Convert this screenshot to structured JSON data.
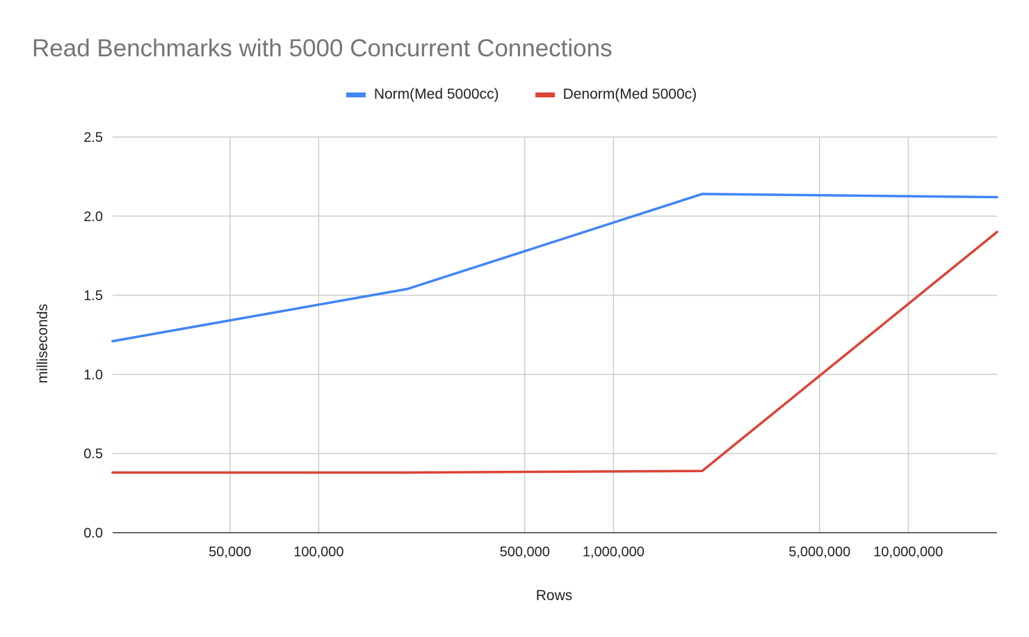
{
  "chart_data": {
    "type": "line",
    "title": "Read Benchmarks with 5000 Concurrent Connections",
    "xlabel": "Rows",
    "ylabel": "milliseconds",
    "x_scale": "log",
    "xlim": [
      20000,
      20000000
    ],
    "ylim": [
      0,
      2.5
    ],
    "y_ticks": [
      0.0,
      0.5,
      1.0,
      1.5,
      2.0,
      2.5
    ],
    "y_tick_labels": [
      "0.0",
      "0.5",
      "1.0",
      "1.5",
      "2.0",
      "2.5"
    ],
    "x_ticks": [
      50000,
      100000,
      500000,
      1000000,
      5000000,
      10000000
    ],
    "x_tick_labels": [
      "50,000",
      "100,000",
      "500,000",
      "1,000,000",
      "5,000,000",
      "10,000,000"
    ],
    "x_gridlines": [
      50000,
      100000,
      500000,
      1000000,
      5000000,
      10000000
    ],
    "grid": true,
    "legend_position": "top",
    "series": [
      {
        "name": "Norm(Med 5000cc)",
        "color": "#4285f4",
        "x": [
          20000,
          200000,
          2000000,
          20000000
        ],
        "values": [
          1.21,
          1.54,
          2.14,
          2.12
        ]
      },
      {
        "name": "Denorm(Med 5000c)",
        "color": "#db4437",
        "x": [
          20000,
          200000,
          2000000,
          20000000
        ],
        "values": [
          0.38,
          0.38,
          0.39,
          1.9
        ]
      }
    ]
  }
}
